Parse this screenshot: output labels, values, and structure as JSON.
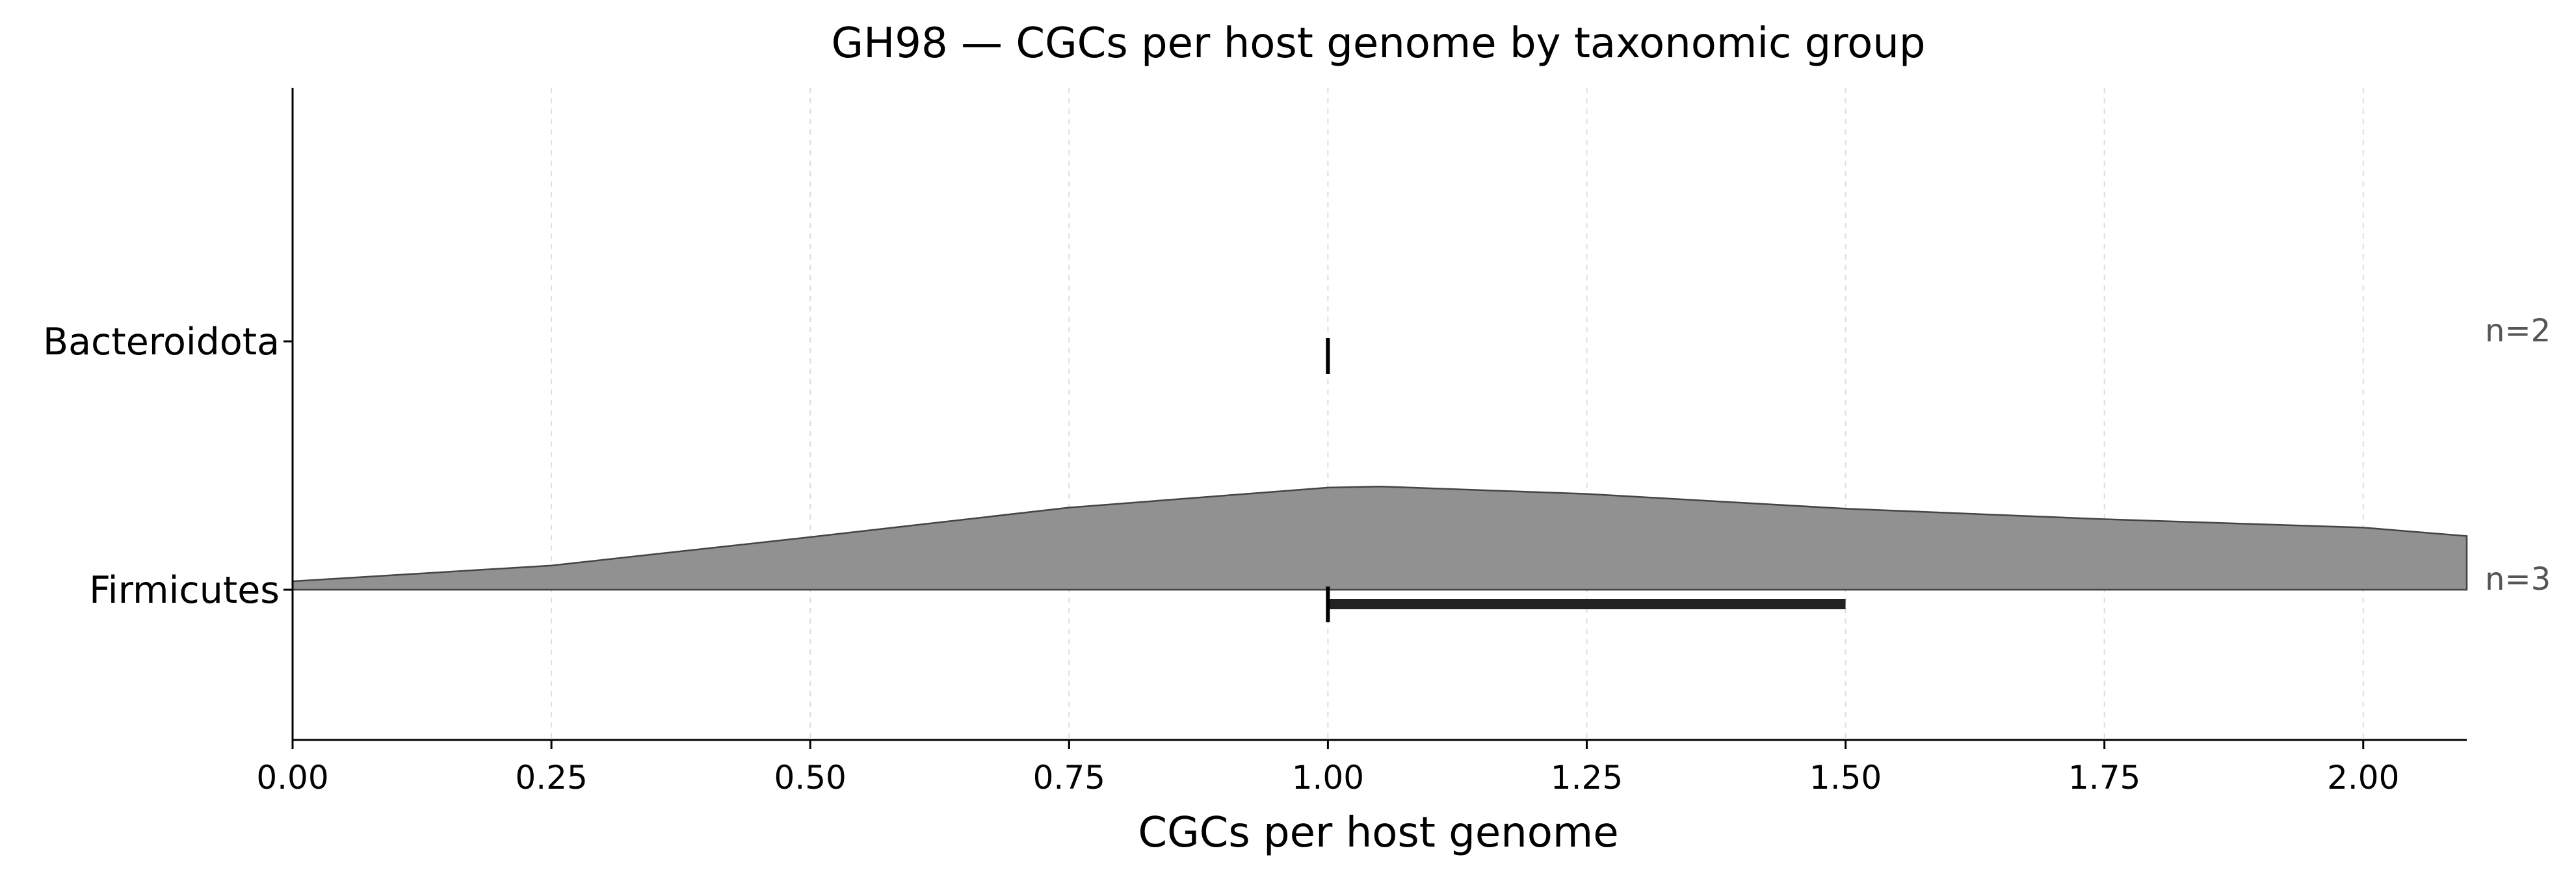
{
  "chart_data": {
    "type": "violin",
    "title": "GH98 — CGCs per host genome by taxonomic group",
    "xlabel": "CGCs per host genome",
    "ylabel": "",
    "xlim": [
      0,
      2.1
    ],
    "xticks": [
      "0.00",
      "0.25",
      "0.50",
      "0.75",
      "1.00",
      "1.25",
      "1.50",
      "1.75",
      "2.00"
    ],
    "xtick_values": [
      0,
      0.25,
      0.5,
      0.75,
      1.0,
      1.25,
      1.5,
      1.75,
      2.0
    ],
    "grid": "vertical dashed",
    "categories": [
      "Bacteroidota",
      "Firmicutes"
    ],
    "groups": [
      {
        "name": "Bacteroidota",
        "n_label": "n=2",
        "median": 1.0,
        "iqr": [
          1.0,
          1.0
        ],
        "density": null
      },
      {
        "name": "Firmicutes",
        "n_label": "n=3",
        "median": 1.0,
        "iqr": [
          1.0,
          1.5
        ],
        "density": {
          "x": [
            0.0,
            0.25,
            0.5,
            0.75,
            1.0,
            1.05,
            1.25,
            1.5,
            1.75,
            2.0,
            2.1
          ],
          "y": [
            0.08,
            0.23,
            0.5,
            0.78,
            0.97,
            0.98,
            0.91,
            0.77,
            0.67,
            0.59,
            0.51
          ]
        }
      }
    ],
    "colors": {
      "violin_fill": "#919191",
      "violin_edge": "#444444",
      "iqr_bar": "#222222",
      "median_tick": "#000000",
      "grid": "#dddddd",
      "n_label": "#555555"
    }
  }
}
